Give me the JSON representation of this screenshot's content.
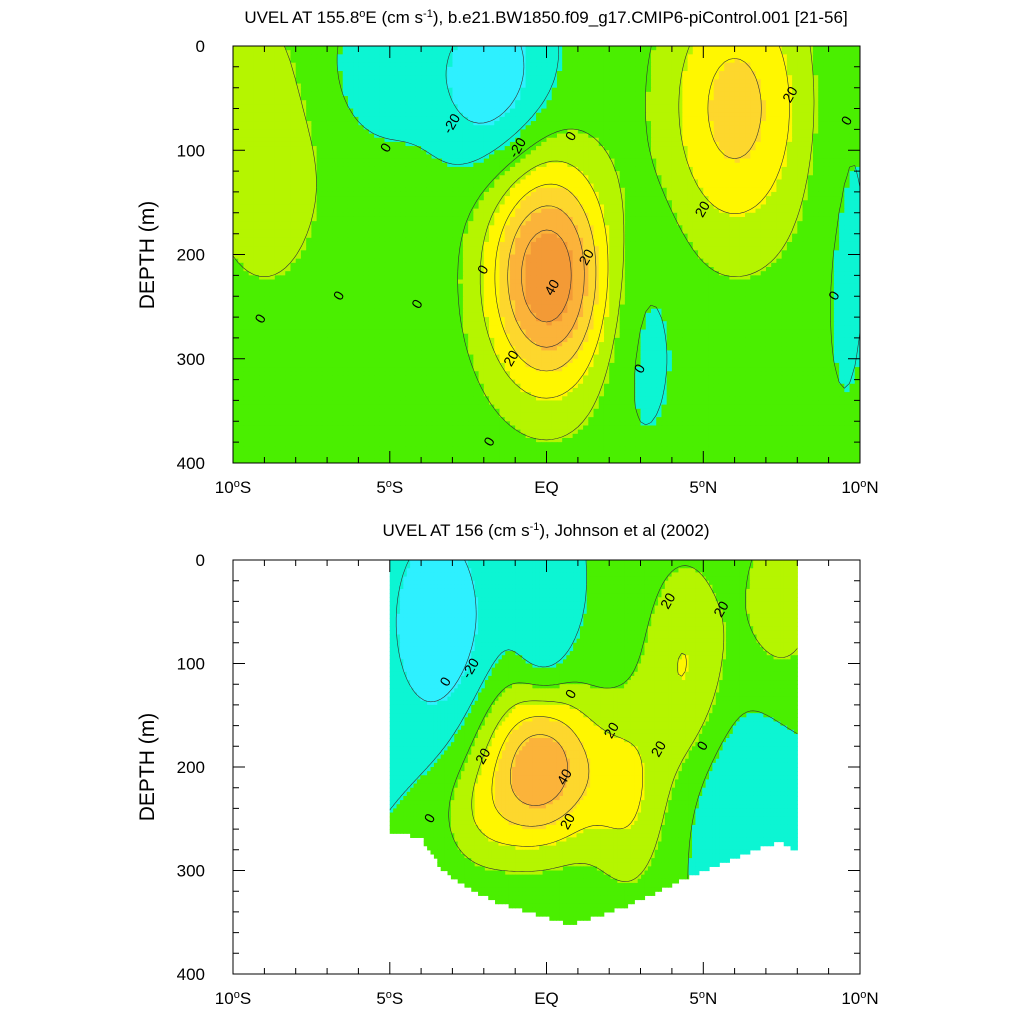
{
  "chart_data": [
    {
      "type": "heatmap",
      "title_main": "UVEL AT 155.8",
      "title_sup_o": "o",
      "title_e": "E (cm s",
      "title_sup_exp": "-1",
      "title_tail": "), b.e21.BW1850.f09_g17.CMIP6-piControl.001 [21-56]",
      "ylabel": "DEPTH (m)",
      "xlabel": "",
      "x_ticks": [
        {
          "label": "10",
          "deg": true,
          "hemi": "S",
          "value": -10
        },
        {
          "label": "5",
          "deg": true,
          "hemi": "S",
          "value": -5
        },
        {
          "label": "EQ",
          "deg": false,
          "hemi": "",
          "value": 0
        },
        {
          "label": "5",
          "deg": true,
          "hemi": "N",
          "value": 5
        },
        {
          "label": "10",
          "deg": true,
          "hemi": "N",
          "value": 10
        }
      ],
      "y_ticks": [
        "0",
        "100",
        "200",
        "300",
        "400"
      ],
      "xlim": [
        -10,
        10
      ],
      "ylim": [
        0,
        400
      ],
      "contour_interval": 10,
      "contour_labels": [
        {
          "text": "-20",
          "lat": -3.0,
          "depth": 75
        },
        {
          "text": "-20",
          "lat": -0.9,
          "depth": 98
        },
        {
          "text": "0",
          "lat": 0.8,
          "depth": 87
        },
        {
          "text": "0",
          "lat": -5.1,
          "depth": 98
        },
        {
          "text": "20",
          "lat": 7.8,
          "depth": 47
        },
        {
          "text": "0",
          "lat": 9.6,
          "depth": 72
        },
        {
          "text": "20",
          "lat": 5.0,
          "depth": 157
        },
        {
          "text": "20",
          "lat": 1.3,
          "depth": 203
        },
        {
          "text": "0",
          "lat": -2.0,
          "depth": 215
        },
        {
          "text": "40",
          "lat": 0.2,
          "depth": 232
        },
        {
          "text": "0",
          "lat": -6.6,
          "depth": 240
        },
        {
          "text": "0",
          "lat": 9.2,
          "depth": 240
        },
        {
          "text": "0",
          "lat": -4.1,
          "depth": 248
        },
        {
          "text": "0",
          "lat": -9.1,
          "depth": 262
        },
        {
          "text": "20",
          "lat": -1.1,
          "depth": 300
        },
        {
          "text": "0",
          "lat": 3.0,
          "depth": 310
        },
        {
          "text": "0",
          "lat": -1.8,
          "depth": 380
        }
      ],
      "field_features": [
        {
          "lat": 0.0,
          "depth": 220,
          "amp": 55,
          "sx": 1.35,
          "sy": 75
        },
        {
          "lat": 6.0,
          "depth": 60,
          "amp": 30,
          "sx": 1.6,
          "sy": 90
        },
        {
          "lat": -1.8,
          "depth": 30,
          "amp": -22,
          "sx": 1.3,
          "sy": 60
        },
        {
          "lat": -5.5,
          "depth": 20,
          "amp": -12,
          "sx": 1.2,
          "sy": 50
        },
        {
          "lat": -9.0,
          "depth": 100,
          "amp": 10,
          "sx": 1.8,
          "sy": 120
        },
        {
          "lat": 3.0,
          "depth": 270,
          "amp": -8,
          "sx": 0.9,
          "sy": 90
        },
        {
          "lat": 9.5,
          "depth": 150,
          "amp": -6,
          "sx": 0.8,
          "sy": 200
        }
      ],
      "field_baseline": 4
    },
    {
      "type": "heatmap",
      "title_main": "UVEL AT 156 (cm s",
      "title_sup_exp": "-1",
      "title_tail": "), Johnson et al (2002)",
      "ylabel": "DEPTH (m)",
      "xlabel": "",
      "x_ticks": [
        {
          "label": "10",
          "deg": true,
          "hemi": "S",
          "value": -10
        },
        {
          "label": "5",
          "deg": true,
          "hemi": "S",
          "value": -5
        },
        {
          "label": "EQ",
          "deg": false,
          "hemi": "",
          "value": 0
        },
        {
          "label": "5",
          "deg": true,
          "hemi": "N",
          "value": 5
        },
        {
          "label": "10",
          "deg": true,
          "hemi": "N",
          "value": 10
        }
      ],
      "y_ticks": [
        "0",
        "100",
        "200",
        "300",
        "400"
      ],
      "xlim": [
        -10,
        10
      ],
      "ylim": [
        0,
        400
      ],
      "data_extent": {
        "lat_min": -5,
        "lat_max": 8
      },
      "contour_interval": 10,
      "contour_labels": [
        {
          "text": "20",
          "lat": 3.9,
          "depth": 40
        },
        {
          "text": "20",
          "lat": 5.6,
          "depth": 48
        },
        {
          "text": "-20",
          "lat": -2.4,
          "depth": 105
        },
        {
          "text": "0",
          "lat": -3.2,
          "depth": 118
        },
        {
          "text": "0",
          "lat": 0.8,
          "depth": 130
        },
        {
          "text": "20",
          "lat": 2.1,
          "depth": 165
        },
        {
          "text": "20",
          "lat": 3.6,
          "depth": 183
        },
        {
          "text": "0",
          "lat": 5.0,
          "depth": 180
        },
        {
          "text": "20",
          "lat": -2.0,
          "depth": 190
        },
        {
          "text": "40",
          "lat": 0.6,
          "depth": 210
        },
        {
          "text": "0",
          "lat": -3.7,
          "depth": 250
        },
        {
          "text": "20",
          "lat": 0.7,
          "depth": 253
        }
      ],
      "field_features": [
        {
          "lat": -0.2,
          "depth": 200,
          "amp": 48,
          "sx": 1.3,
          "sy": 55
        },
        {
          "lat": 2.6,
          "depth": 230,
          "amp": 18,
          "sx": 0.9,
          "sy": 70
        },
        {
          "lat": 4.4,
          "depth": 100,
          "amp": 20,
          "sx": 1.0,
          "sy": 80
        },
        {
          "lat": 7.5,
          "depth": 30,
          "amp": 18,
          "sx": 0.9,
          "sy": 60
        },
        {
          "lat": -3.5,
          "depth": 60,
          "amp": -20,
          "sx": 1.1,
          "sy": 70
        },
        {
          "lat": -0.1,
          "depth": 80,
          "amp": -12,
          "sx": 0.6,
          "sy": 40
        },
        {
          "lat": 6.0,
          "depth": 230,
          "amp": -10,
          "sx": 1.1,
          "sy": 60
        },
        {
          "lat": -2.2,
          "depth": 250,
          "amp": 12,
          "sx": 1.0,
          "sy": 40
        }
      ],
      "field_baseline": 0,
      "bottom_profile": [
        {
          "lat": -5.0,
          "depth": 262
        },
        {
          "lat": -4.0,
          "depth": 268
        },
        {
          "lat": -3.3,
          "depth": 300
        },
        {
          "lat": -2.6,
          "depth": 315
        },
        {
          "lat": -1.6,
          "depth": 330
        },
        {
          "lat": -0.8,
          "depth": 338
        },
        {
          "lat": 0.8,
          "depth": 352
        },
        {
          "lat": 2.5,
          "depth": 335
        },
        {
          "lat": 4.1,
          "depth": 312
        },
        {
          "lat": 5.6,
          "depth": 293
        },
        {
          "lat": 6.5,
          "depth": 282
        },
        {
          "lat": 7.4,
          "depth": 272
        },
        {
          "lat": 8.0,
          "depth": 282
        }
      ]
    }
  ]
}
